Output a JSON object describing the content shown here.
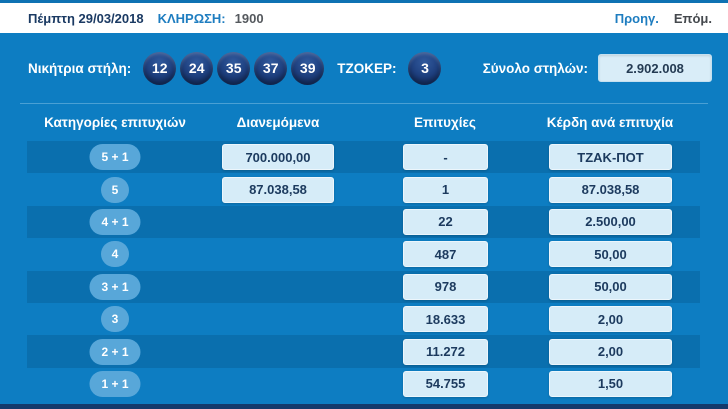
{
  "header": {
    "date": "Πέμπτη 29/03/2018",
    "draw_label": "ΚΛΗΡΩΣΗ:",
    "draw_number": "1900",
    "prev_label": "Προηγ.",
    "next_label": "Επόμ."
  },
  "winning": {
    "label": "Νικήτρια στήλη:",
    "numbers": [
      "12",
      "24",
      "35",
      "37",
      "39"
    ],
    "joker_label": "ΤΖΟΚΕΡ:",
    "joker_number": "3",
    "total_label": "Σύνολο στηλών:",
    "total_value": "2.902.008"
  },
  "table": {
    "headers": [
      "Κατηγορίες επιτυχιών",
      "Διανεμόμενα",
      "Επιτυχίες",
      "Κέρδη ανά επιτυχία"
    ],
    "rows": [
      {
        "category": "5 + 1",
        "distributed": "700.000,00",
        "winners": "-",
        "prize": "ΤΖΑΚ-ΠΟΤ"
      },
      {
        "category": "5",
        "distributed": "87.038,58",
        "winners": "1",
        "prize": "87.038,58"
      },
      {
        "category": "4 + 1",
        "distributed": "",
        "winners": "22",
        "prize": "2.500,00"
      },
      {
        "category": "4",
        "distributed": "",
        "winners": "487",
        "prize": "50,00"
      },
      {
        "category": "3 + 1",
        "distributed": "",
        "winners": "978",
        "prize": "50,00"
      },
      {
        "category": "3",
        "distributed": "",
        "winners": "18.633",
        "prize": "2,00"
      },
      {
        "category": "2 + 1",
        "distributed": "",
        "winners": "11.272",
        "prize": "2,00"
      },
      {
        "category": "1 + 1",
        "distributed": "",
        "winners": "54.755",
        "prize": "1,50"
      }
    ]
  },
  "colors": {
    "body_blue": "#0d7dc2",
    "stripe_blue": "#0a6fae",
    "ball_navy": "#1d3e7d",
    "badge_blue": "#58a7d9",
    "value_box": "#d6ecf8",
    "value_text": "#1c3a5e",
    "link_blue": "#1e7dc0",
    "bottom_bar": "#143a6b"
  }
}
